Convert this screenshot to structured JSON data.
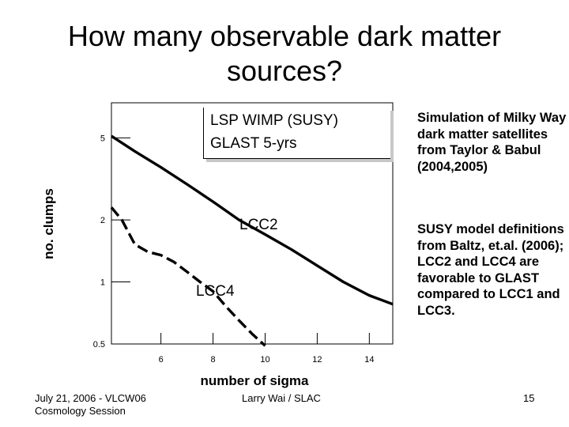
{
  "slide": {
    "title_line1": "How many observable dark matter",
    "title_line2": "sources?",
    "note1": "Simulation of Milky Way dark matter satellites from Taylor & Babul (2004,2005)",
    "note2": "SUSY model definitions from Baltz, et.al. (2006); LCC2 and LCC4 are favorable to GLAST compared to LCC1 and LCC3.",
    "footer_left_line1": "July 21, 2006 - VLCW06",
    "footer_left_line2": "Cosmology Session",
    "footer_center": "Larry Wai / SLAC",
    "page_number": "15"
  },
  "chart_data": {
    "type": "line",
    "title": "",
    "xlabel": "number of sigma",
    "ylabel": "no. clumps",
    "yscale": "log",
    "xlim": [
      4.1,
      14.9
    ],
    "ylim": [
      0.5,
      7.4
    ],
    "xticks": [
      6,
      8,
      10,
      12,
      14
    ],
    "xtick_labels": [
      "6",
      "8",
      "10",
      "12",
      "14"
    ],
    "yticks": [
      5,
      2,
      1,
      0.5
    ],
    "ytick_labels": [
      "5",
      "2",
      "1",
      "0.5"
    ],
    "legend": {
      "line1": "LSP WIMP (SUSY)",
      "line2": "GLAST 5-yrs"
    },
    "series": [
      {
        "name": "LCC2",
        "label": "LCC2",
        "style": "solid",
        "x": [
          4.1,
          5.0,
          6.0,
          7.0,
          8.0,
          9.0,
          10.0,
          11.0,
          12.0,
          13.0,
          14.0,
          14.9
        ],
        "y": [
          5.1,
          4.3,
          3.6,
          2.98,
          2.45,
          2.0,
          1.7,
          1.44,
          1.2,
          1.0,
          0.86,
          0.78
        ]
      },
      {
        "name": "LCC4",
        "label": "LCC4",
        "style": "dashed",
        "x": [
          4.1,
          4.5,
          5.0,
          5.5,
          6.0,
          6.5,
          7.0,
          7.5,
          8.0,
          8.5,
          9.0,
          9.5,
          10.0
        ],
        "y": [
          2.3,
          2.0,
          1.52,
          1.4,
          1.35,
          1.25,
          1.12,
          1.0,
          0.9,
          0.76,
          0.65,
          0.56,
          0.49
        ]
      }
    ]
  }
}
